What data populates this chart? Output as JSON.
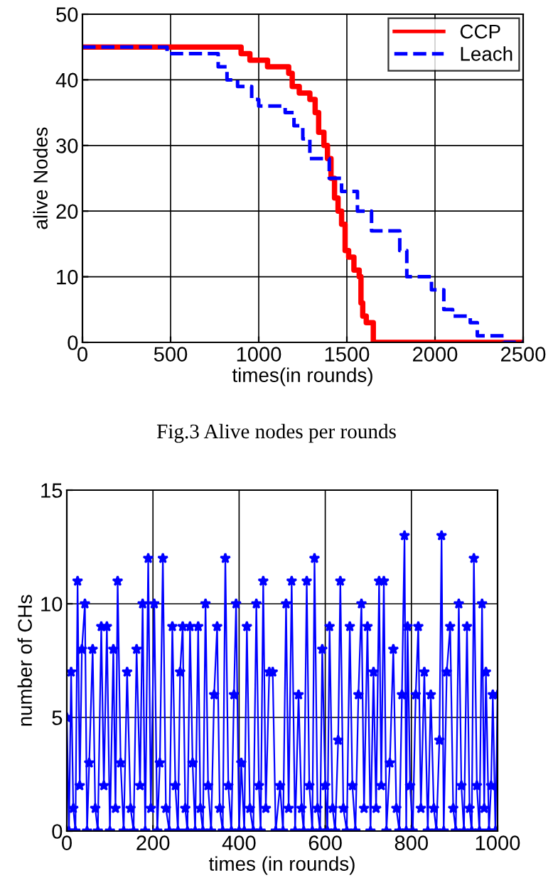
{
  "chart_data": [
    {
      "type": "step",
      "xlabel": "times(in rounds)",
      "ylabel": "alive Nodes",
      "annotations": [
        "Fig.3 Alive nodes per rounds"
      ],
      "xlim": [
        0,
        2500
      ],
      "ylim": [
        0,
        50
      ],
      "xticks": [
        0,
        500,
        1000,
        1500,
        2000,
        2500
      ],
      "yticks": [
        0,
        10,
        20,
        30,
        40,
        50
      ],
      "grid": true,
      "legend": "top right",
      "series": [
        {
          "name": "CCP",
          "color": "#ff0000",
          "line_style": "solid",
          "x": [
            0,
            900,
            950,
            1050,
            1170,
            1190,
            1230,
            1290,
            1320,
            1340,
            1370,
            1390,
            1410,
            1430,
            1450,
            1470,
            1490,
            1510,
            1540,
            1570,
            1580,
            1590,
            1610,
            1650,
            2500
          ],
          "values": [
            45,
            44,
            43,
            42,
            41,
            39,
            38,
            37,
            35,
            32,
            30,
            28,
            25,
            22,
            20,
            18,
            14,
            13,
            11,
            10,
            6,
            4,
            3,
            0,
            0
          ]
        },
        {
          "name": "Leach",
          "color": "#0000ff",
          "line_style": "dashed",
          "x": [
            0,
            480,
            770,
            820,
            880,
            960,
            1000,
            1150,
            1200,
            1250,
            1290,
            1400,
            1470,
            1560,
            1640,
            1800,
            1840,
            1980,
            2050,
            2100,
            2200,
            2240,
            2390,
            2500
          ],
          "values": [
            45,
            44,
            42,
            40,
            39,
            37,
            36,
            35,
            33,
            31,
            28,
            25,
            23,
            20,
            17,
            14,
            10,
            8,
            5,
            4,
            3,
            1,
            0,
            0
          ]
        }
      ]
    },
    {
      "type": "line",
      "xlabel": "times (in rounds)",
      "ylabel": "number of CHs",
      "xlim": [
        0,
        1000
      ],
      "ylim": [
        0,
        15
      ],
      "xticks": [
        0,
        200,
        400,
        600,
        800,
        1000
      ],
      "yticks": [
        0,
        5,
        10,
        15
      ],
      "grid": true,
      "marker": "star",
      "series": [
        {
          "color": "#0000ff",
          "x": [
            0,
            5,
            10,
            15,
            20,
            25,
            30,
            35,
            42,
            47,
            52,
            60,
            66,
            72,
            80,
            86,
            93,
            100,
            108,
            113,
            118,
            125,
            132,
            140,
            148,
            155,
            162,
            170,
            176,
            182,
            189,
            195,
            203,
            210,
            216,
            223,
            230,
            238,
            245,
            252,
            258,
            263,
            269,
            275,
            280,
            286,
            292,
            298,
            305,
            310,
            316,
            322,
            328,
            335,
            342,
            349,
            355,
            362,
            368,
            375,
            382,
            388,
            393,
            400,
            405,
            412,
            418,
            425,
            433,
            440,
            446,
            450,
            456,
            462,
            470,
            478,
            485,
            495,
            502,
            509,
            515,
            522,
            530,
            538,
            545,
            550,
            557,
            563,
            570,
            575,
            582,
            588,
            593,
            600,
            605,
            610,
            617,
            623,
            630,
            635,
            642,
            650,
            657,
            663,
            670,
            677,
            684,
            690,
            698,
            705,
            712,
            718,
            725,
            730,
            736,
            742,
            750,
            758,
            765,
            772,
            778,
            784,
            788,
            791,
            797,
            803,
            810,
            816,
            822,
            830,
            838,
            845,
            852,
            858,
            865,
            870,
            875,
            882,
            890,
            897,
            903,
            910,
            916,
            922,
            929,
            935,
            940,
            945,
            952,
            958,
            964,
            969,
            973,
            980,
            985,
            989,
            995,
            1000
          ],
          "values": [
            5,
            0,
            7,
            1,
            0,
            11,
            2,
            8,
            10,
            0,
            3,
            8,
            1,
            0,
            9,
            2,
            9,
            0,
            8,
            1,
            11,
            3,
            0,
            7,
            1,
            0,
            8,
            2,
            10,
            0,
            12,
            1,
            10,
            0,
            3,
            12,
            1,
            0,
            9,
            2,
            0,
            7,
            9,
            1,
            0,
            9,
            3,
            0,
            9,
            1,
            0,
            10,
            2,
            0,
            6,
            9,
            1,
            0,
            12,
            2,
            0,
            6,
            10,
            0,
            3,
            0,
            9,
            1,
            0,
            10,
            2,
            0,
            11,
            1,
            7,
            7,
            0,
            2,
            0,
            10,
            1,
            11,
            0,
            6,
            1,
            0,
            11,
            2,
            0,
            12,
            1,
            0,
            8,
            2,
            0,
            9,
            1,
            0,
            4,
            11,
            1,
            0,
            9,
            2,
            0,
            6,
            10,
            1,
            9,
            0,
            7,
            1,
            11,
            2,
            11,
            0,
            3,
            8,
            1,
            0,
            6,
            13,
            0,
            9,
            2,
            0,
            6,
            9,
            1,
            7,
            0,
            6,
            1,
            0,
            4,
            13,
            0,
            7,
            9,
            1,
            0,
            10,
            2,
            0,
            9,
            1,
            0,
            12,
            2,
            0,
            10,
            1,
            7,
            0,
            2,
            6,
            0,
            6
          ]
        }
      ]
    }
  ]
}
